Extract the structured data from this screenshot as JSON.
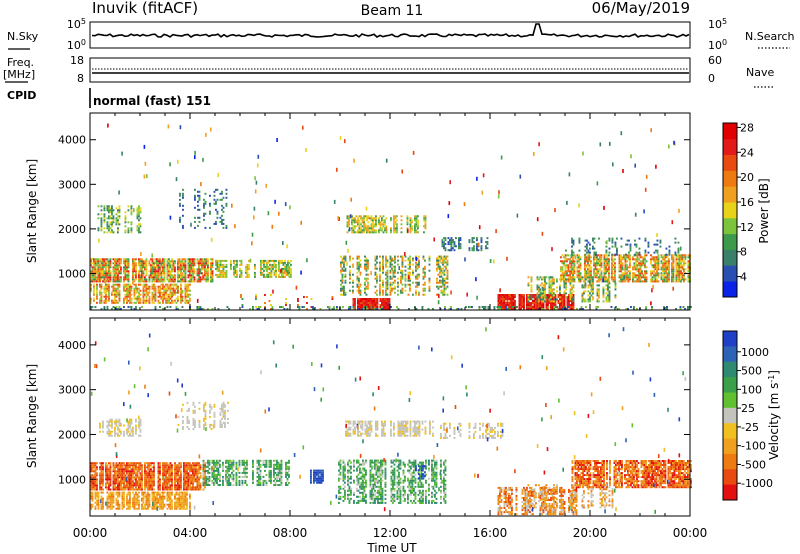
{
  "header": {
    "station": "Inuvik (fitACF)",
    "beam": "Beam 11",
    "date": "06/May/2019"
  },
  "panels": {
    "nsky_label": "N.Sky",
    "nsearch_label": "N.Search",
    "nsky_ticks": [
      "10^5",
      "10^0"
    ],
    "nsearch_ticks": [
      "10^5",
      "10^0"
    ],
    "freq_label_1": "Freq.",
    "freq_label_2": "[MHz]",
    "freq_ticks": [
      "18",
      "8"
    ],
    "nave_label": "Nave",
    "nave_ticks": [
      "60",
      "0"
    ],
    "cpid_label": "CPID",
    "cpid_text": "normal (fast) 151"
  },
  "chart_data": [
    {
      "type": "heatmap",
      "title": "",
      "xlabel": "Time UT",
      "ylabel": "Slant Range [km]",
      "x_ticks": [
        "00:00",
        "04:00",
        "08:00",
        "12:00",
        "16:00",
        "20:00",
        "00:00"
      ],
      "x_range_hours": [
        0,
        24
      ],
      "y_ticks": [
        1000,
        2000,
        3000,
        4000
      ],
      "ylim": [
        180,
        4600
      ],
      "colorbar": {
        "label": "Power [dB]",
        "ticks": [
          "4",
          "8",
          "12",
          "16",
          "20",
          "24",
          "28"
        ],
        "colors": [
          "#0b22e8",
          "#2a4fb3",
          "#3a7f6a",
          "#3d9a4a",
          "#7cc43c",
          "#e8d21a",
          "#f0a020",
          "#ee7a12",
          "#e84a10",
          "#e31a1a",
          "#e00000"
        ]
      },
      "regions": [
        {
          "t0": 0.0,
          "t1": 4.8,
          "r0": 800,
          "r1": 1300,
          "dominant": "orange/yellow"
        },
        {
          "t0": 0.0,
          "t1": 4.0,
          "r0": 300,
          "r1": 750,
          "dominant": "orange/green"
        },
        {
          "t0": 16.3,
          "t1": 19.2,
          "r0": 180,
          "r1": 500,
          "dominant": "red"
        },
        {
          "t0": 10.5,
          "t1": 12.0,
          "r0": 180,
          "r1": 400,
          "dominant": "red"
        }
      ]
    },
    {
      "type": "heatmap",
      "title": "",
      "xlabel": "Time UT",
      "ylabel": "Slant Range [km]",
      "x_ticks": [
        "00:00",
        "04:00",
        "08:00",
        "12:00",
        "16:00",
        "20:00",
        "00:00"
      ],
      "x_range_hours": [
        0,
        24
      ],
      "y_ticks": [
        1000,
        2000,
        3000,
        4000
      ],
      "ylim": [
        180,
        4600
      ],
      "colorbar": {
        "label": "Velocity [m s^-1]",
        "ticks": [
          "1000",
          "500",
          "100",
          "25",
          "-25",
          "-100",
          "-500",
          "-1000"
        ],
        "colors": [
          "#1f3fc7",
          "#2e62b5",
          "#2f8a72",
          "#3aa04a",
          "#5fc030",
          "#c4c4bc",
          "#f0c020",
          "#f0a020",
          "#ee7a12",
          "#e84a10",
          "#e31010"
        ]
      },
      "regions": [
        {
          "t0": 0.0,
          "t1": 4.5,
          "r0": 800,
          "r1": 1300,
          "dominant": "orange"
        },
        {
          "t0": 5.0,
          "t1": 8.0,
          "r0": 900,
          "r1": 1400,
          "dominant": "green"
        },
        {
          "t0": 14.0,
          "t1": 16.0,
          "r0": 1900,
          "r1": 2300,
          "dominant": "grey"
        },
        {
          "t0": 19.5,
          "t1": 24.0,
          "r0": 800,
          "r1": 1300,
          "dominant": "orange"
        }
      ]
    }
  ]
}
